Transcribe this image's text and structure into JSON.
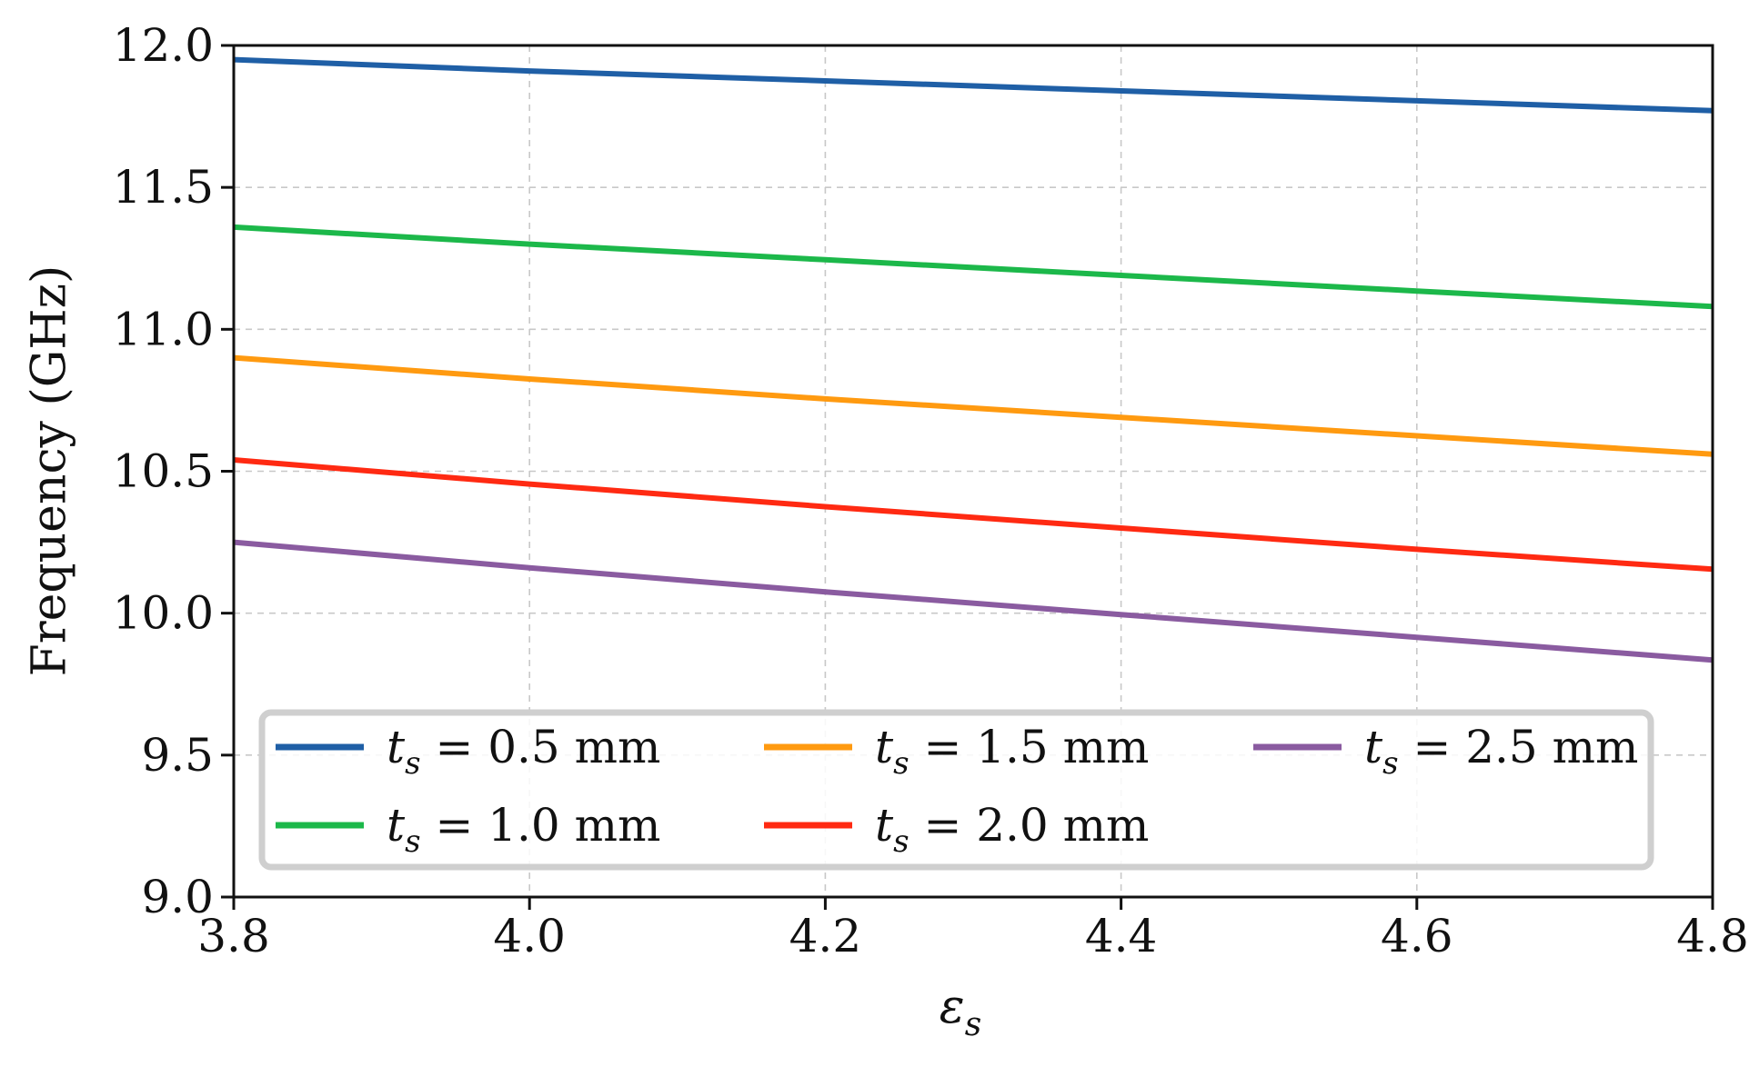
{
  "chart_data": {
    "type": "line",
    "title": "",
    "xlabel": "ε",
    "xlabel_subscript": "s",
    "ylabel": "Frequency (GHz)",
    "xlim": [
      3.8,
      4.8
    ],
    "ylim": [
      9.0,
      12.0
    ],
    "xticks": [
      3.8,
      4.0,
      4.2,
      4.4,
      4.6,
      4.8
    ],
    "xtick_labels": [
      "3.8",
      "4.0",
      "4.2",
      "4.4",
      "4.6",
      "4.8"
    ],
    "yticks": [
      9.0,
      9.5,
      10.0,
      10.5,
      11.0,
      11.5,
      12.0
    ],
    "ytick_labels": [
      "9.0",
      "9.5",
      "10.0",
      "10.5",
      "11.0",
      "11.5",
      "12.0"
    ],
    "grid": true,
    "legend_position": "bottom",
    "x": [
      3.8,
      4.0,
      4.2,
      4.4,
      4.6,
      4.8
    ],
    "series": [
      {
        "name": "t_s = 0.5 mm",
        "var": "t",
        "sub": "s",
        "rest": " = 0.5 mm",
        "color": "#1f5fa6",
        "values": [
          11.95,
          11.91,
          11.875,
          11.84,
          11.805,
          11.77
        ]
      },
      {
        "name": "t_s = 1.0 mm",
        "var": "t",
        "sub": "s",
        "rest": " = 1.0 mm",
        "color": "#1cb84a",
        "values": [
          11.36,
          11.3,
          11.245,
          11.19,
          11.135,
          11.08
        ]
      },
      {
        "name": "t_s = 1.5 mm",
        "var": "t",
        "sub": "s",
        "rest": " = 1.5 mm",
        "color": "#ff9a10",
        "values": [
          10.9,
          10.825,
          10.755,
          10.69,
          10.625,
          10.56
        ]
      },
      {
        "name": "t_s = 2.0 mm",
        "var": "t",
        "sub": "s",
        "rest": " = 2.0 mm",
        "color": "#ff2a12",
        "values": [
          10.54,
          10.455,
          10.375,
          10.3,
          10.225,
          10.155
        ]
      },
      {
        "name": "t_s = 2.5 mm",
        "var": "t",
        "sub": "s",
        "rest": " = 2.5 mm",
        "color": "#8a5ba0",
        "values": [
          10.25,
          10.16,
          10.075,
          9.995,
          9.915,
          9.835
        ]
      }
    ]
  }
}
